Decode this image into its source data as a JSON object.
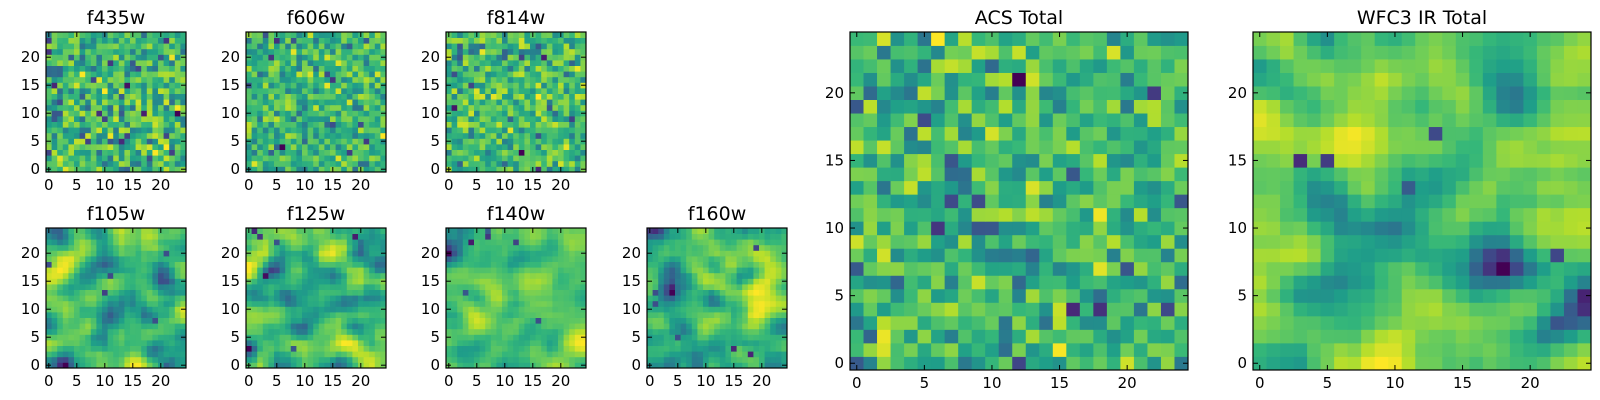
{
  "chart_data": [
    {
      "type": "heatmap",
      "title": "f435w",
      "grid_size": 25,
      "colormap": "viridis",
      "texture": "noise",
      "seed": 11,
      "x_ticks": [
        0,
        5,
        10,
        15,
        20
      ],
      "y_ticks": [
        0,
        5,
        10,
        15,
        20
      ],
      "xlim": [
        -0.5,
        24.5
      ],
      "ylim": [
        -0.5,
        24.5
      ]
    },
    {
      "type": "heatmap",
      "title": "f606w",
      "grid_size": 25,
      "colormap": "viridis",
      "texture": "noise",
      "seed": 23,
      "x_ticks": [
        0,
        5,
        10,
        15,
        20
      ],
      "y_ticks": [
        0,
        5,
        10,
        15,
        20
      ],
      "xlim": [
        -0.5,
        24.5
      ],
      "ylim": [
        -0.5,
        24.5
      ]
    },
    {
      "type": "heatmap",
      "title": "f814w",
      "grid_size": 25,
      "colormap": "viridis",
      "texture": "noise",
      "seed": 37,
      "x_ticks": [
        0,
        5,
        10,
        15,
        20
      ],
      "y_ticks": [
        0,
        5,
        10,
        15,
        20
      ],
      "xlim": [
        -0.5,
        24.5
      ],
      "ylim": [
        -0.5,
        24.5
      ]
    },
    {
      "type": "heatmap",
      "title": "f105w",
      "grid_size": 25,
      "colormap": "viridis",
      "texture": "smooth",
      "seed": 41,
      "x_ticks": [
        0,
        5,
        10,
        15,
        20
      ],
      "y_ticks": [
        0,
        5,
        10,
        15,
        20
      ],
      "xlim": [
        -0.5,
        24.5
      ],
      "ylim": [
        -0.5,
        24.5
      ]
    },
    {
      "type": "heatmap",
      "title": "f125w",
      "grid_size": 25,
      "colormap": "viridis",
      "texture": "smooth",
      "seed": 53,
      "x_ticks": [
        0,
        5,
        10,
        15,
        20
      ],
      "y_ticks": [
        0,
        5,
        10,
        15,
        20
      ],
      "xlim": [
        -0.5,
        24.5
      ],
      "ylim": [
        -0.5,
        24.5
      ]
    },
    {
      "type": "heatmap",
      "title": "f140w",
      "grid_size": 25,
      "colormap": "viridis",
      "texture": "smooth",
      "seed": 67,
      "x_ticks": [
        0,
        5,
        10,
        15,
        20
      ],
      "y_ticks": [
        0,
        5,
        10,
        15,
        20
      ],
      "xlim": [
        -0.5,
        24.5
      ],
      "ylim": [
        -0.5,
        24.5
      ]
    },
    {
      "type": "heatmap",
      "title": "f160w",
      "grid_size": 25,
      "colormap": "viridis",
      "texture": "smooth",
      "seed": 79,
      "x_ticks": [
        0,
        5,
        10,
        15,
        20
      ],
      "y_ticks": [
        0,
        5,
        10,
        15,
        20
      ],
      "xlim": [
        -0.5,
        24.5
      ],
      "ylim": [
        -0.5,
        24.5
      ]
    },
    {
      "type": "heatmap",
      "title": "ACS Total",
      "grid_size": 25,
      "colormap": "viridis",
      "texture": "noise",
      "seed": 97,
      "x_ticks": [
        0,
        5,
        10,
        15,
        20
      ],
      "y_ticks": [
        0,
        5,
        10,
        15,
        20
      ],
      "xlim": [
        -0.5,
        24.5
      ],
      "ylim": [
        -0.5,
        24.5
      ]
    },
    {
      "type": "heatmap",
      "title": "WFC3 IR Total",
      "grid_size": 25,
      "colormap": "viridis",
      "texture": "smooth",
      "seed": 113,
      "x_ticks": [
        0,
        5,
        10,
        15,
        20
      ],
      "y_ticks": [
        0,
        5,
        10,
        15,
        20
      ],
      "xlim": [
        -0.5,
        24.5
      ],
      "ylim": [
        -0.5,
        24.5
      ]
    }
  ]
}
